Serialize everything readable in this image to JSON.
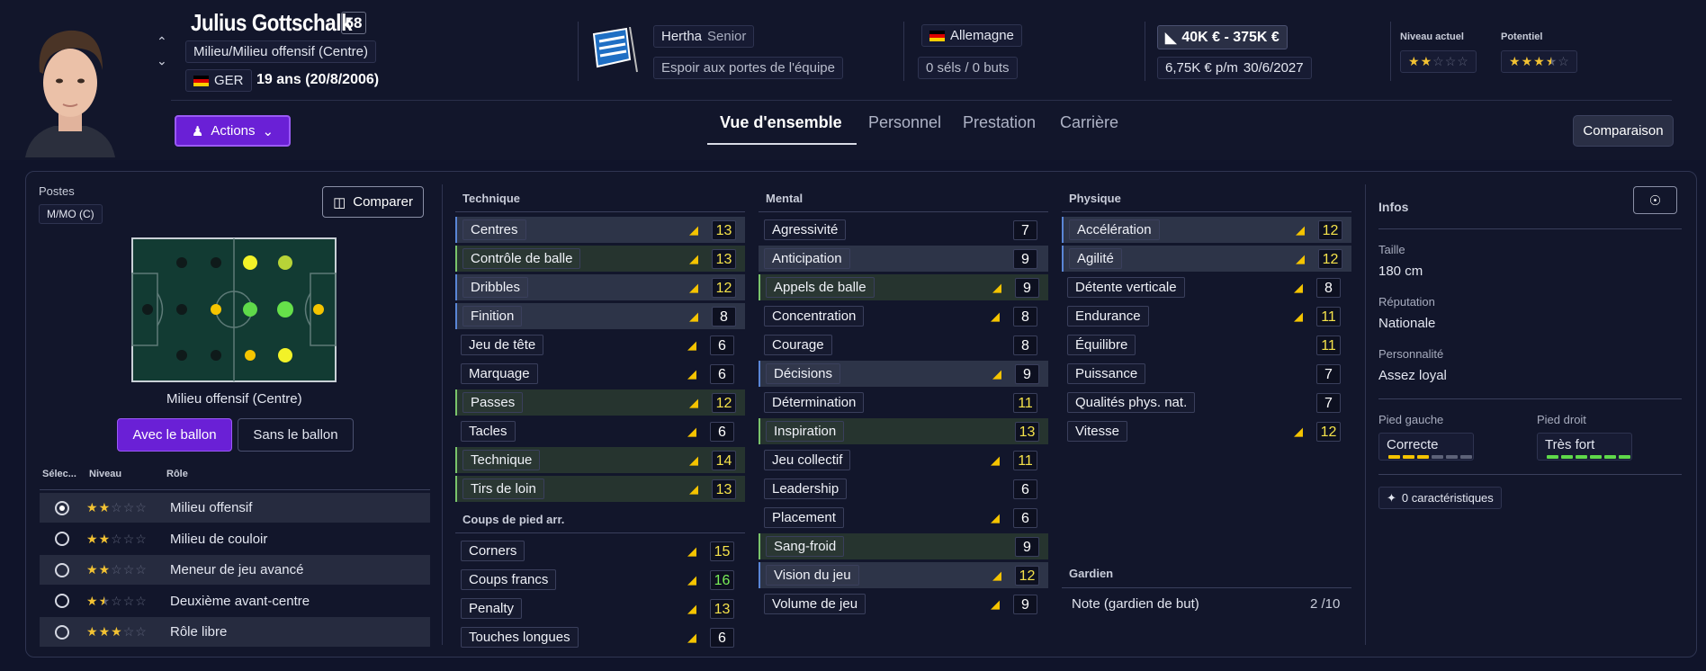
{
  "player": {
    "name": "Julius Gottschalk",
    "ca": "58",
    "position": "Milieu/Milieu offensif (Centre)",
    "nationality_code": "GER",
    "age": "19 ans (20/8/2006)"
  },
  "club": {
    "name": "Hertha",
    "squad": "Senior",
    "status": "Espoir aux portes de l'équipe"
  },
  "international": {
    "country": "Allemagne",
    "caps": "0 séls / 0 buts"
  },
  "contract": {
    "value": "40K € - 375K €",
    "wage": "6,75K € p/m",
    "expiry": "30/6/2027"
  },
  "ability": {
    "current_label": "Niveau actuel",
    "potential_label": "Potentiel",
    "current_stars": 2,
    "potential_stars": 3.5
  },
  "nav": {
    "actions": "Actions",
    "tabs": [
      "Vue d'ensemble",
      "Personnel",
      "Prestation",
      "Carrière"
    ],
    "compare": "Comparaison"
  },
  "positions": {
    "title": "Postes",
    "badge": "M/MO (C)",
    "compare_btn": "Comparer",
    "pitch_label": "Milieu offensif (Centre)",
    "with_ball": "Avec le ballon",
    "without_ball": "Sans le ballon",
    "col_select": "Sélec...",
    "col_level": "Niveau",
    "col_role": "Rôle",
    "roles": [
      {
        "name": "Milieu offensif",
        "stars": 2,
        "selected": true
      },
      {
        "name": "Milieu de couloir",
        "stars": 2,
        "selected": false
      },
      {
        "name": "Meneur de jeu avancé",
        "stars": 2,
        "selected": false
      },
      {
        "name": "Deuxième avant-centre",
        "stars": 1.5,
        "selected": false
      },
      {
        "name": "Rôle libre",
        "stars": 3,
        "selected": false
      }
    ]
  },
  "technique": {
    "title": "Technique",
    "attrs": [
      {
        "name": "Centres",
        "value": "13"
      },
      {
        "name": "Contrôle de balle",
        "value": "13"
      },
      {
        "name": "Dribbles",
        "value": "12"
      },
      {
        "name": "Finition",
        "value": "8"
      },
      {
        "name": "Jeu de tête",
        "value": "6"
      },
      {
        "name": "Marquage",
        "value": "6"
      },
      {
        "name": "Passes",
        "value": "12"
      },
      {
        "name": "Tacles",
        "value": "6"
      },
      {
        "name": "Technique",
        "value": "14"
      },
      {
        "name": "Tirs de loin",
        "value": "13"
      }
    ]
  },
  "setpieces": {
    "title": "Coups de pied arr.",
    "attrs": [
      {
        "name": "Corners",
        "value": "15"
      },
      {
        "name": "Coups francs",
        "value": "16"
      },
      {
        "name": "Penalty",
        "value": "13"
      },
      {
        "name": "Touches longues",
        "value": "6"
      }
    ]
  },
  "mental": {
    "title": "Mental",
    "attrs": [
      {
        "name": "Agressivité",
        "value": "7"
      },
      {
        "name": "Anticipation",
        "value": "9"
      },
      {
        "name": "Appels de balle",
        "value": "9"
      },
      {
        "name": "Concentration",
        "value": "8"
      },
      {
        "name": "Courage",
        "value": "8"
      },
      {
        "name": "Décisions",
        "value": "9"
      },
      {
        "name": "Détermination",
        "value": "11"
      },
      {
        "name": "Inspiration",
        "value": "13"
      },
      {
        "name": "Jeu collectif",
        "value": "11"
      },
      {
        "name": "Leadership",
        "value": "6"
      },
      {
        "name": "Placement",
        "value": "6"
      },
      {
        "name": "Sang-froid",
        "value": "9"
      },
      {
        "name": "Vision du jeu",
        "value": "12"
      },
      {
        "name": "Volume de jeu",
        "value": "9"
      }
    ]
  },
  "physical": {
    "title": "Physique",
    "attrs": [
      {
        "name": "Accélération",
        "value": "12"
      },
      {
        "name": "Agilité",
        "value": "12"
      },
      {
        "name": "Détente verticale",
        "value": "8"
      },
      {
        "name": "Endurance",
        "value": "11"
      },
      {
        "name": "Équilibre",
        "value": "11"
      },
      {
        "name": "Puissance",
        "value": "7"
      },
      {
        "name": "Qualités phys. nat.",
        "value": "7"
      },
      {
        "name": "Vitesse",
        "value": "12"
      }
    ]
  },
  "goalkeeper": {
    "title": "Gardien",
    "label": "Note (gardien de but)",
    "value": "2 /10"
  },
  "infos": {
    "title": "Infos",
    "height_label": "Taille",
    "height": "180 cm",
    "reputation_label": "Réputation",
    "reputation": "Nationale",
    "personality_label": "Personnalité",
    "personality": "Assez loyal",
    "left_foot_label": "Pied gauche",
    "left_foot": "Correcte",
    "right_foot_label": "Pied droit",
    "right_foot": "Très fort",
    "left_foot_level": 3,
    "right_foot_level": 6,
    "traits": "0 caractéristiques"
  },
  "colors": {
    "accent": "#6a20d6",
    "highlight": "#f5e24a",
    "good": "#7af058",
    "star": "#f2c233"
  }
}
